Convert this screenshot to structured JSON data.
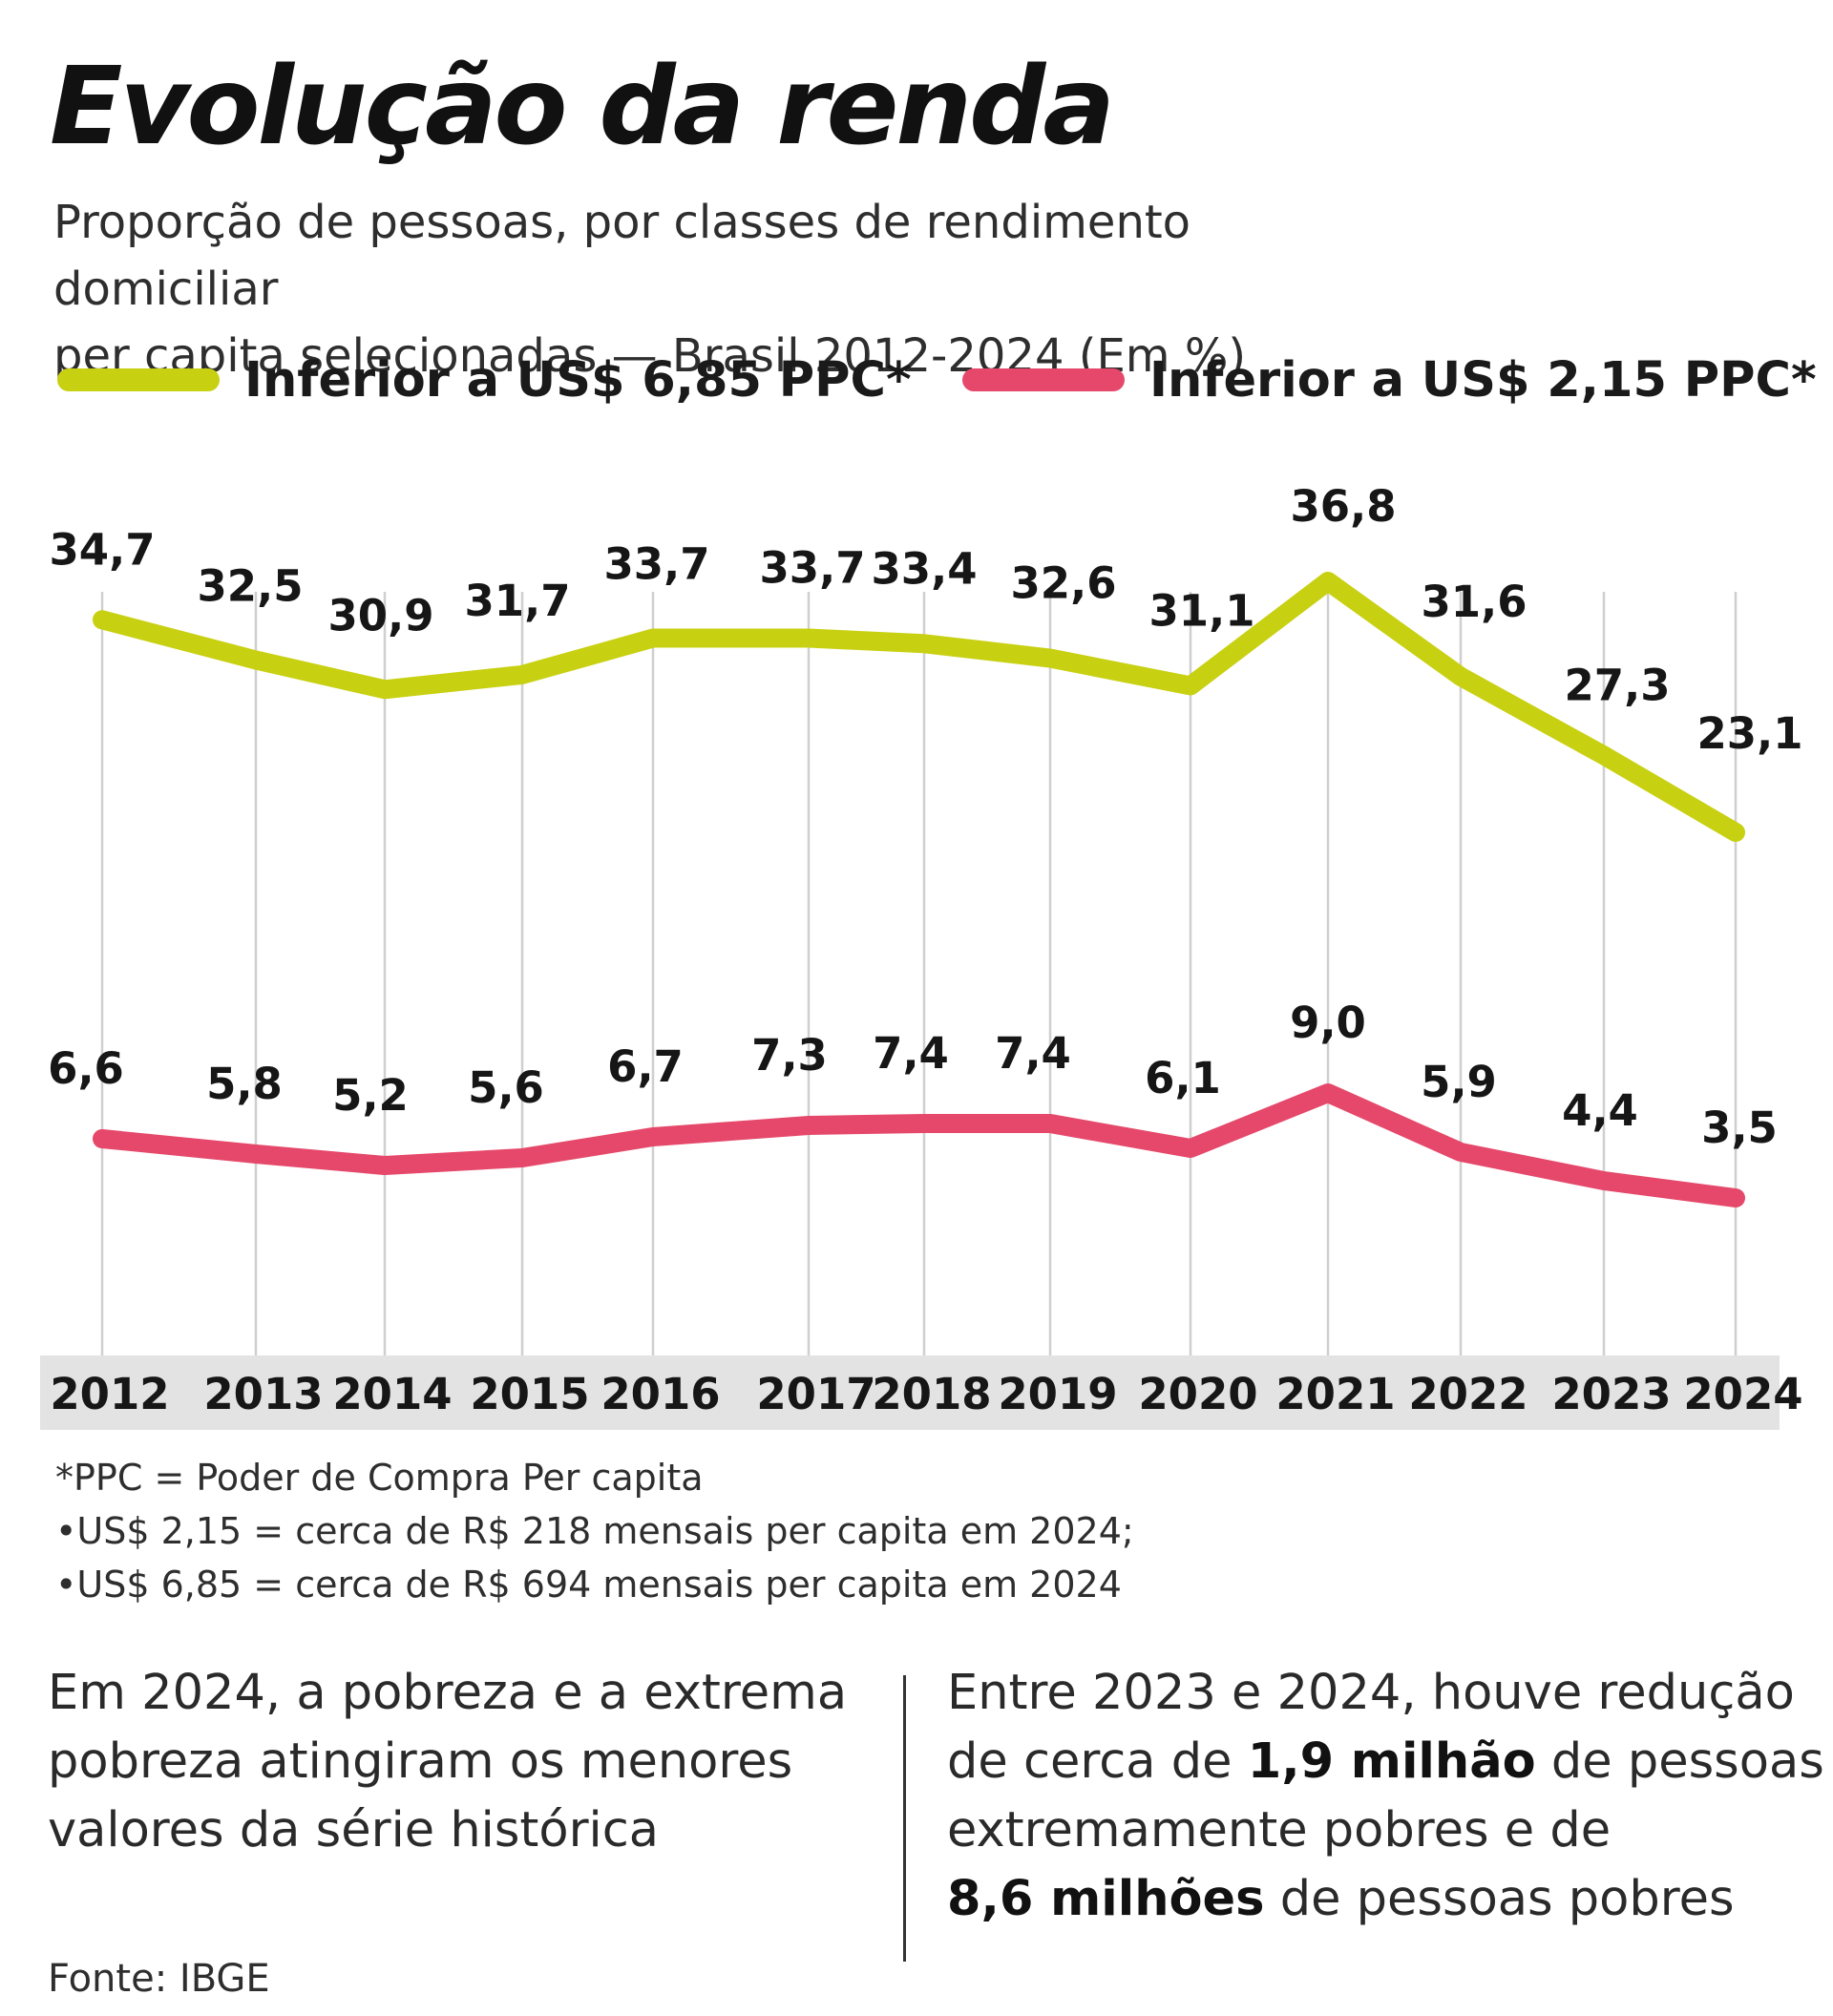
{
  "title": "Evolução da renda",
  "subtitle_line1": "Proporção de pessoas, por classes de rendimento domiciliar",
  "subtitle_line2": "per capita selecionadas  — Brasil 2012-2024 (Em %)",
  "legend": [
    {
      "label": "Inferior a US$ 6,85 PPC*",
      "color": "#c8d012"
    },
    {
      "label": "Inferior a US$ 2,15 PPC*",
      "color": "#e5486a"
    }
  ],
  "chart_data": {
    "type": "line",
    "x": [
      "2012",
      "2013",
      "2014",
      "2015",
      "2016",
      "2017",
      "2018",
      "2019",
      "2020",
      "2021",
      "2022",
      "2023",
      "2024"
    ],
    "series": [
      {
        "name": "Inferior a US$ 6,85 PPC*",
        "color": "#c8d012",
        "values": [
          34.7,
          32.5,
          30.9,
          31.7,
          33.7,
          33.7,
          33.4,
          32.6,
          31.1,
          36.8,
          31.6,
          27.3,
          23.1
        ],
        "labels": [
          "34,7",
          "32,5",
          "30,9",
          "31,7",
          "33,7",
          "33,7",
          "33,4",
          "32,6",
          "31,1",
          "36,8",
          "31,6",
          "27,3",
          "23,1"
        ]
      },
      {
        "name": "Inferior a US$ 2,15 PPC*",
        "color": "#e5486a",
        "values": [
          6.6,
          5.8,
          5.2,
          5.6,
          6.7,
          7.3,
          7.4,
          7.4,
          6.1,
          9.0,
          5.9,
          4.4,
          3.5
        ],
        "labels": [
          "6,6",
          "5,8",
          "5,2",
          "5,6",
          "6,7",
          "7,3",
          "7,4",
          "7,4",
          "6,1",
          "9,0",
          "5,9",
          "4,4",
          "3,5"
        ]
      }
    ],
    "grid": "vertical",
    "axis_band_color": "#e3e3e3"
  },
  "notes": [
    "*PPC = Poder de Compra Per capita",
    "•US$ 2,15 = cerca de R$ 218  mensais per capita em 2024;",
    "•US$ 6,85 = cerca de R$ 694  mensais per capita em 2024"
  ],
  "callout_left": {
    "line1": "Em 2024, a pobreza e a extrema",
    "line2": "pobreza atingiram os menores",
    "line3": "valores da série histórica"
  },
  "callout_right": {
    "line1": "Entre 2023 e 2024, houve redução",
    "line2_pre": "de cerca de ",
    "line2_bold": "1,9 milhão",
    "line2_post": " de pessoas",
    "line3": "extremamente pobres e de",
    "line4_bold": "8,6 milhões",
    "line4_post": " de pessoas pobres"
  },
  "source": "Fonte: IBGE"
}
